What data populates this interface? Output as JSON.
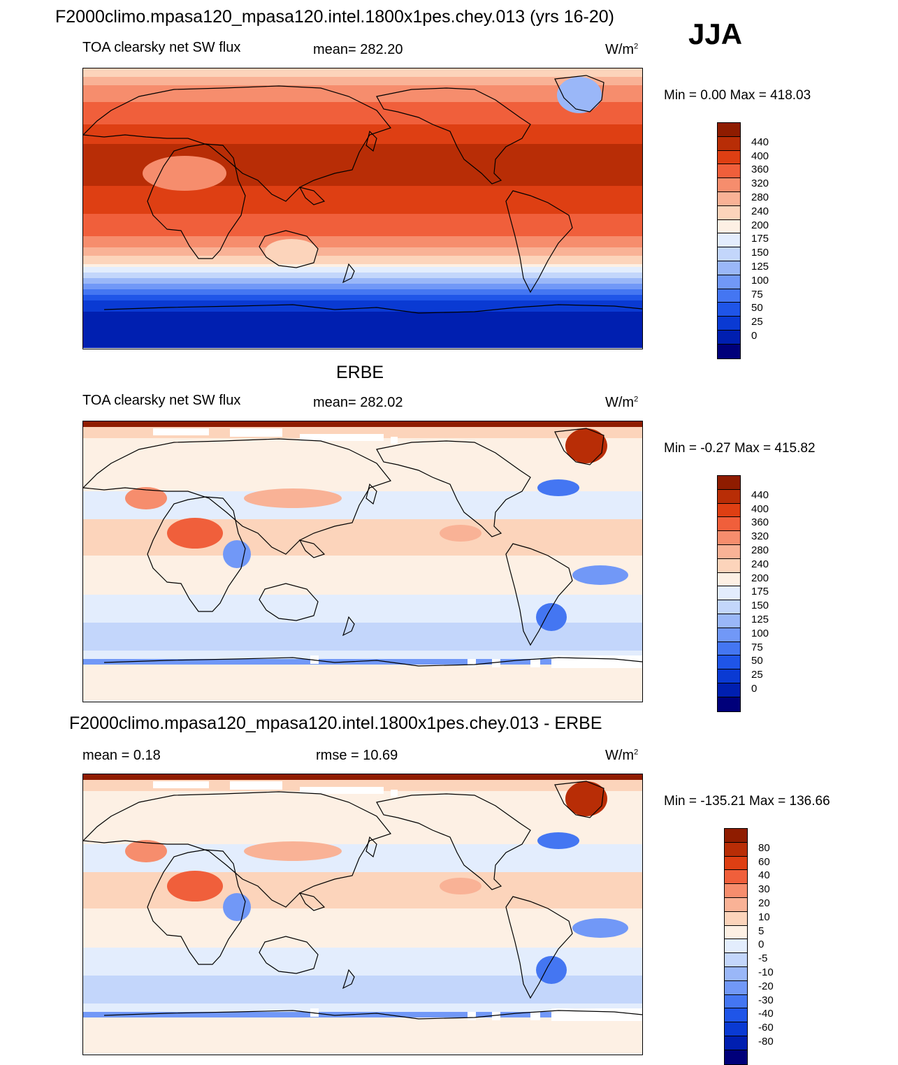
{
  "header": {
    "title": "F2000climo.mpasa120_mpasa120.intel.1800x1pes.chey.013 (yrs 16-20)",
    "season": "JJA"
  },
  "colors": {
    "abs_scale": [
      "#00007a",
      "#001fb0",
      "#0a3ad3",
      "#1f55e8",
      "#4476f2",
      "#7198f7",
      "#9ab7f8",
      "#c3d6fb",
      "#e3edfd",
      "#fdf0e4",
      "#fcd4bb",
      "#f9b296",
      "#f68d6d",
      "#f05f3b",
      "#de3f13",
      "#b82d06",
      "#8f1c00"
    ],
    "diff_scale": [
      "#00007a",
      "#001fb0",
      "#0a3ad3",
      "#1f55e8",
      "#4476f2",
      "#7198f7",
      "#9ab7f8",
      "#c3d6fb",
      "#e3edfd",
      "#fdf0e4",
      "#fcd4bb",
      "#f9b296",
      "#f68d6d",
      "#f05f3b",
      "#de3f13",
      "#b82d06",
      "#8f1c00"
    ]
  },
  "panels": [
    {
      "subtitle": "",
      "left_label": "TOA clearsky net SW flux",
      "mean_label": "mean= 282.20",
      "units": "W/m",
      "units_sup": "2",
      "minmax": "Min =   0.00 Max = 418.03"
    },
    {
      "subtitle": "ERBE",
      "left_label": "TOA clearsky net SW flux",
      "mean_label": "mean= 282.02",
      "units": "W/m",
      "units_sup": "2",
      "minmax": "Min =  -0.27 Max = 415.82"
    },
    {
      "subtitle": "F2000climo.mpasa120_mpasa120.intel.1800x1pes.chey.013 - ERBE",
      "left_label": "mean =   0.18",
      "mean_label": "rmse =  10.69",
      "units": "W/m",
      "units_sup": "2",
      "minmax": "Min = -135.21 Max = 136.66"
    }
  ],
  "chart_data": [
    {
      "type": "heatmap",
      "title": "TOA clearsky net SW flux",
      "variable": "TOA clearsky net SW flux",
      "mean": 282.2,
      "min": 0.0,
      "max": 418.03,
      "units": "W/m2",
      "colorbar_levels": [
        "440",
        "400",
        "360",
        "320",
        "280",
        "240",
        "200",
        "175",
        "150",
        "125",
        "100",
        "75",
        "50",
        "25",
        "0"
      ]
    },
    {
      "type": "heatmap",
      "title": "ERBE",
      "variable": "TOA clearsky net SW flux",
      "mean": 282.02,
      "min": -0.27,
      "max": 415.82,
      "units": "W/m2",
      "colorbar_levels": [
        "440",
        "400",
        "360",
        "320",
        "280",
        "240",
        "200",
        "175",
        "150",
        "125",
        "100",
        "75",
        "50",
        "25",
        "0"
      ]
    },
    {
      "type": "heatmap",
      "title": "F2000climo.mpasa120_mpasa120.intel.1800x1pes.chey.013 - ERBE",
      "mean": 0.18,
      "rmse": 10.69,
      "min": -135.21,
      "max": 136.66,
      "units": "W/m2",
      "colorbar_levels": [
        "80",
        "60",
        "40",
        "30",
        "20",
        "10",
        "5",
        "0",
        "-5",
        "-10",
        "-20",
        "-30",
        "-40",
        "-60",
        "-80"
      ]
    }
  ]
}
